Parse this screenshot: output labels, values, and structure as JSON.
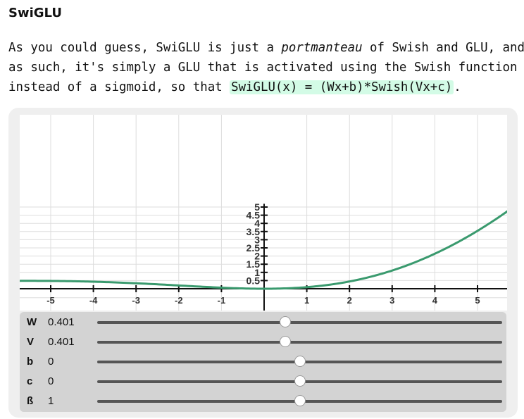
{
  "heading": "SwiGLU",
  "paragraph": {
    "line1_a": "As you could guess, SwiGLU is just a ",
    "line1_em": "portmanteau",
    "line1_b": " of Swish and GLU, and",
    "line2": "as such, it's simply a GLU that is activated using the Swish function",
    "line3_a": "instead of a sigmoid, so that ",
    "formula": "SwiGLU(x) = (Wx+b)*Swish(Vx+c)",
    "line3_b": "."
  },
  "chart_data": {
    "type": "line",
    "x_ticks": [
      "-5",
      "-4",
      "-3",
      "-2",
      "-1",
      "1",
      "2",
      "3",
      "4",
      "5"
    ],
    "y_ticks": [
      "0.5",
      "1",
      "1.5",
      "2",
      "2.5",
      "3",
      "3.5",
      "4",
      "4.5",
      "5"
    ],
    "xlim": [
      -5.7,
      5.7
    ],
    "ylim": [
      0,
      5
    ],
    "grid": true,
    "line_color": "#3a9a6e",
    "function": "SwiGLU(x) = (W*x+b) * Swish(V*x+c)",
    "params": {
      "W": 0.401,
      "V": 0.401,
      "b": 0,
      "c": 0,
      "beta": 1
    }
  },
  "sliders": [
    {
      "label": "W",
      "value": "0.401",
      "fraction": 0.465
    },
    {
      "label": "V",
      "value": "0.401",
      "fraction": 0.465
    },
    {
      "label": "b",
      "value": "0",
      "fraction": 0.5
    },
    {
      "label": "c",
      "value": "0",
      "fraction": 0.5
    },
    {
      "label": "ß",
      "value": "1",
      "fraction": 0.5
    }
  ]
}
